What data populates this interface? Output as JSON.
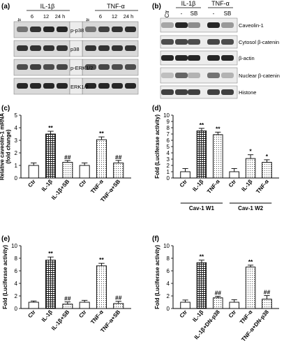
{
  "blots": {
    "a": {
      "letter": "(a)",
      "groups": [
        {
          "label": "IL-1β"
        },
        {
          "label": "TNF-α"
        }
      ],
      "lanes": [
        "Ctr",
        "6",
        "12",
        "24 h",
        "Ctr",
        "6",
        "12",
        "24 h"
      ],
      "rows": [
        {
          "label": "p-p38",
          "intensity": [
            0.55,
            0.8,
            0.85,
            0.85,
            0.55,
            0.75,
            0.8,
            0.82
          ]
        },
        {
          "label": "p38",
          "intensity": [
            0.8,
            0.8,
            0.8,
            0.8,
            0.8,
            0.8,
            0.8,
            0.8
          ]
        },
        {
          "label": "p-ERK1/2",
          "intensity": [
            0.7,
            0.75,
            0.7,
            0.72,
            0.7,
            0.72,
            0.7,
            0.7
          ]
        },
        {
          "label": "ERK1/2",
          "intensity": [
            0.85,
            0.85,
            0.85,
            0.85,
            0.85,
            0.85,
            0.85,
            0.85
          ]
        }
      ]
    },
    "b": {
      "letter": "(b)",
      "groups": [
        {
          "label": "IL-1β"
        },
        {
          "label": "TNF-α"
        }
      ],
      "lanes": [
        "Ctr",
        "-",
        "SB",
        "-",
        "SB"
      ],
      "rows": [
        {
          "label": "Caveolin-1",
          "intensity": [
            0.35,
            0.85,
            0.45,
            0.85,
            0.4
          ]
        },
        {
          "label": "Cytosol β-catenin",
          "intensity": [
            0.7,
            0.72,
            0.7,
            0.72,
            0.7
          ]
        },
        {
          "label": "β-actin",
          "intensity": [
            0.85,
            0.85,
            0.85,
            0.85,
            0.85
          ]
        },
        {
          "label": "Nuclear β-catenin",
          "intensity": [
            0.25,
            0.6,
            0.3,
            0.55,
            0.3
          ]
        },
        {
          "label": "Histone",
          "intensity": [
            0.75,
            0.75,
            0.75,
            0.75,
            0.75
          ]
        }
      ]
    }
  },
  "chart_data": [
    {
      "panel": "(c)",
      "type": "bar",
      "ylabel": "Relative caveolin-1 mRNA (fold change)",
      "ylim": [
        0,
        5
      ],
      "yticks": [
        0,
        1,
        2,
        3,
        4,
        5
      ],
      "categories": [
        "Ctr",
        "IL-1β",
        "IL-1β+SB",
        "Ctr",
        "TNF-α",
        "TNF-α+SB"
      ],
      "values": [
        1.0,
        3.5,
        1.25,
        1.0,
        3.05,
        1.2
      ],
      "errors": [
        0.2,
        0.22,
        0.15,
        0.2,
        0.22,
        0.2
      ],
      "annotations": [
        "",
        "**",
        "##",
        "",
        "**",
        "##"
      ],
      "fills": [
        "white",
        "grid",
        "dots",
        "white",
        "dots",
        "dots"
      ]
    },
    {
      "panel": "(d)",
      "type": "bar",
      "ylabel": "Fold (Luciferase activity)",
      "ylim": [
        0,
        10
      ],
      "yticks": [
        0,
        1,
        2,
        3,
        4,
        5,
        6,
        7,
        8,
        9,
        10
      ],
      "categories": [
        "Ctr",
        "IL-1β",
        "TNF-α",
        "Ctr",
        "IL-1β",
        "TNF-α"
      ],
      "values": [
        1.0,
        7.5,
        6.9,
        1.0,
        3.1,
        2.5
      ],
      "errors": [
        0.5,
        0.4,
        0.4,
        0.5,
        0.6,
        0.4
      ],
      "annotations": [
        "",
        "**",
        "**",
        "",
        "*",
        "*"
      ],
      "fills": [
        "white",
        "grid",
        "dots",
        "white",
        "dots",
        "dots"
      ],
      "groups": [
        {
          "label": "Cav-1 W1",
          "span": [
            0,
            2
          ]
        },
        {
          "label": "Cav-1 W2",
          "span": [
            3,
            5
          ]
        }
      ]
    },
    {
      "panel": "(e)",
      "type": "bar",
      "ylabel": "Fold (Luciferase activity)",
      "ylim": [
        0,
        10
      ],
      "yticks": [
        0,
        2,
        4,
        6,
        8,
        10
      ],
      "categories": [
        "Ctr",
        "IL-1β",
        "IL-1β+SB",
        "Ctr",
        "TNF-α",
        "TNF-α+SB"
      ],
      "values": [
        1.0,
        7.7,
        0.7,
        1.0,
        6.8,
        0.8
      ],
      "errors": [
        0.2,
        0.5,
        0.35,
        0.3,
        0.4,
        0.35
      ],
      "annotations": [
        "",
        "**",
        "##",
        "",
        "**",
        "##"
      ],
      "fills": [
        "white",
        "grid",
        "dots",
        "white",
        "dots",
        "dots"
      ]
    },
    {
      "panel": "(f)",
      "type": "bar",
      "ylabel": "Fold (Luciferase activity)",
      "ylim": [
        0,
        10
      ],
      "yticks": [
        0,
        2,
        4,
        6,
        8,
        10
      ],
      "categories": [
        "Ctr",
        "IL-1β",
        "IL-1β+DN-p38",
        "Ctr",
        "TNF-α",
        "TNF-α+DN-p38"
      ],
      "values": [
        1.0,
        7.3,
        1.7,
        1.0,
        6.6,
        1.5
      ],
      "errors": [
        0.35,
        0.4,
        0.25,
        0.4,
        0.3,
        0.55
      ],
      "annotations": [
        "",
        "**",
        "##",
        "",
        "**",
        "##"
      ],
      "fills": [
        "white",
        "grid",
        "dots",
        "white",
        "dots",
        "dots"
      ]
    }
  ]
}
